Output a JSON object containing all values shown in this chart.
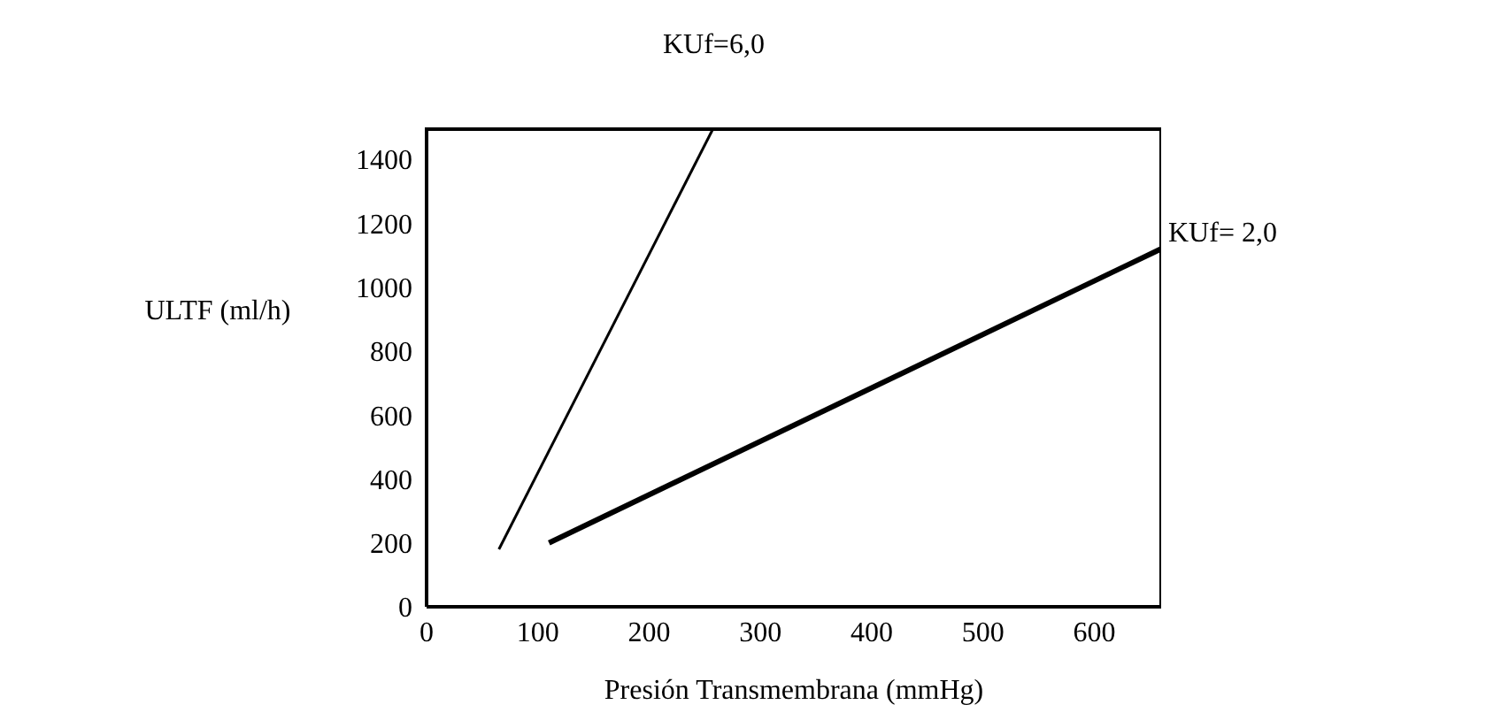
{
  "chart_data": {
    "type": "line",
    "xlabel": "Presión Transmembrana (mmHg)",
    "ylabel": "ULTF (ml/h)",
    "xlim": [
      0,
      660
    ],
    "xticks": [
      0,
      100,
      200,
      300,
      400,
      500,
      600
    ],
    "ylim": [
      0,
      1500
    ],
    "yticks": [
      0,
      200,
      400,
      600,
      800,
      1000,
      1200,
      1400
    ],
    "grid": false,
    "legend": false,
    "marker": "none",
    "line_style": "solid",
    "series": [
      {
        "name": "KUf=6,0",
        "color": "#000000",
        "x": [
          65,
          258
        ],
        "values": [
          180,
          1500
        ]
      },
      {
        "name": "KUf= 2,0",
        "color": "#000000",
        "x": [
          110,
          660
        ],
        "values": [
          200,
          1120
        ]
      }
    ]
  }
}
